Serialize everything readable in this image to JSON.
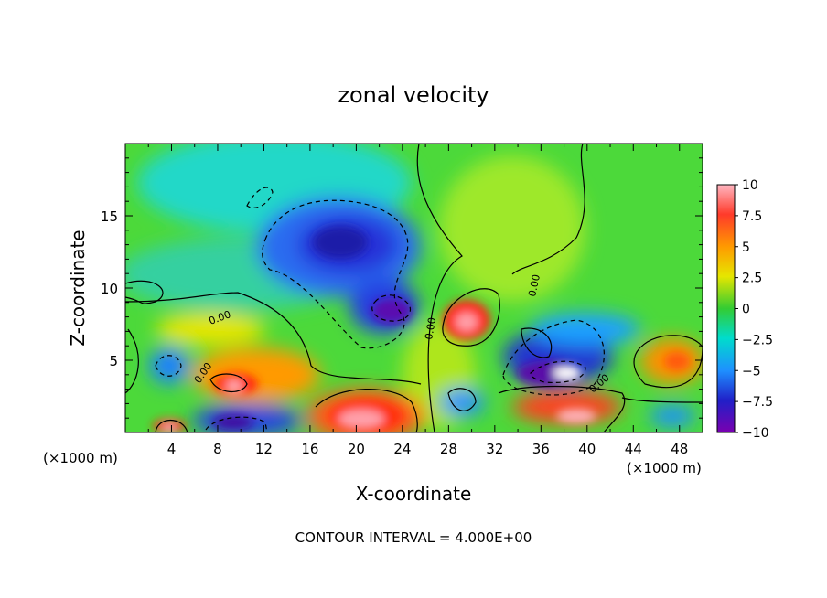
{
  "chart_data": {
    "type": "heatmap",
    "title": "zonal velocity",
    "xlabel": "X-coordinate",
    "ylabel": "Z-coordinate",
    "x_unit_left": "(×1000 m)",
    "x_unit_right": "(×1000 m)",
    "footer": "CONTOUR INTERVAL = 4.000E+00",
    "xlim": [
      0,
      50
    ],
    "ylim": [
      0,
      20
    ],
    "x_ticks": [
      4,
      8,
      12,
      16,
      20,
      24,
      28,
      32,
      36,
      40,
      44,
      48
    ],
    "y_ticks": [
      5,
      10,
      15
    ],
    "colorbar": {
      "ticks": [
        10,
        7.5,
        5,
        2.5,
        0,
        -2.5,
        -5,
        -7.5,
        -10
      ],
      "tick_labels": [
        "10",
        "7.5",
        "5",
        "2.5",
        "0",
        "−2.5",
        "−5",
        "−7.5",
        "−10"
      ],
      "range": [
        -10,
        10
      ]
    },
    "contour_labels": [
      "0.00",
      "0.00",
      "0.00",
      "0.00",
      "0.00"
    ],
    "features": [
      {
        "x": 20,
        "z": 13,
        "u": -7.5
      },
      {
        "x": 23,
        "z": 8.5,
        "u": -10
      },
      {
        "x": 29.5,
        "z": 7.5,
        "u": 10
      },
      {
        "x": 20.5,
        "z": 1.5,
        "u": 10
      },
      {
        "x": 10,
        "z": 3.3,
        "u": 10
      },
      {
        "x": 9.5,
        "z": 0.6,
        "u": -10
      },
      {
        "x": 39,
        "z": 4.2,
        "u": -10
      },
      {
        "x": 38.5,
        "z": 0.8,
        "u": 10
      },
      {
        "x": 47,
        "z": 5,
        "u": 7.5
      },
      {
        "x": 3.5,
        "z": 4.5,
        "u": -5
      },
      {
        "x": 4,
        "z": 0.5,
        "u": 10
      },
      {
        "x": 21,
        "z": 2.5,
        "u": 5
      }
    ]
  },
  "colors": {
    "background": "#ffffff",
    "colormap": [
      "#7b00b0",
      "#2020d0",
      "#1f8fff",
      "#00e0ff",
      "#33d64a",
      "#99ee00",
      "#ffd700",
      "#ff2200",
      "#ff9fa8"
    ]
  }
}
